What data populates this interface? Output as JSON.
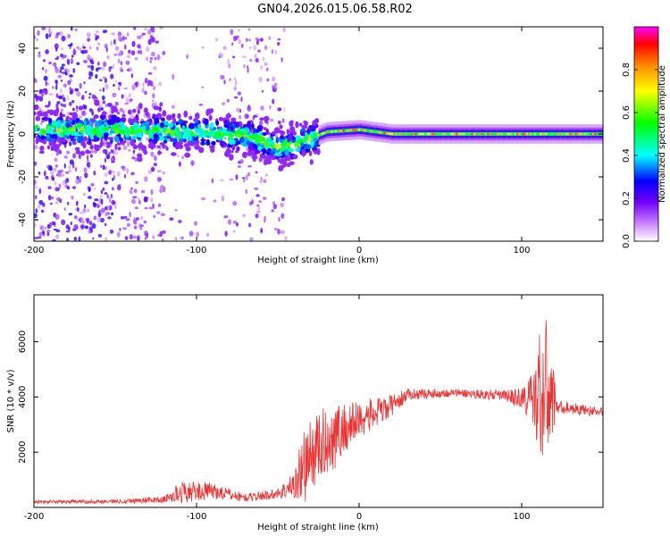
{
  "title": "GN04.2026.015.06.58.R02",
  "chart_data": [
    {
      "type": "heatmap",
      "xlabel": "Height of straight line (km)",
      "ylabel": "Frequency (Hz)",
      "xlim": [
        -200,
        150
      ],
      "ylim": [
        -50,
        50
      ],
      "xticks": [
        -200,
        -100,
        0,
        100
      ],
      "yticks": [
        -40,
        -20,
        0,
        20,
        40
      ],
      "colorbar": {
        "label": "Normalized spectral amplitude",
        "range": [
          0,
          1
        ],
        "ticks": [
          "0.0",
          "0.2",
          "0.4",
          "0.6",
          "0.8"
        ],
        "tick_values": [
          0.0,
          0.2,
          0.4,
          0.6,
          0.8
        ]
      },
      "ridge": [
        {
          "x": -200,
          "y": 2
        },
        {
          "x": -150,
          "y": 2
        },
        {
          "x": -100,
          "y": 1
        },
        {
          "x": -70,
          "y": -1
        },
        {
          "x": -50,
          "y": -6
        },
        {
          "x": -40,
          "y": -5
        },
        {
          "x": -30,
          "y": -2
        },
        {
          "x": -20,
          "y": 1
        },
        {
          "x": 0,
          "y": 2
        },
        {
          "x": 20,
          "y": 0
        },
        {
          "x": 50,
          "y": 0
        },
        {
          "x": 100,
          "y": 0
        },
        {
          "x": 115,
          "y": 0
        },
        {
          "x": 150,
          "y": 0
        }
      ]
    },
    {
      "type": "line",
      "xlabel": "Height of straight line (km)",
      "ylabel": "SNR (10 * v/v)",
      "xlim": [
        -200,
        150
      ],
      "ylim": [
        0,
        7700
      ],
      "xticks": [
        -200,
        -100,
        0,
        100
      ],
      "yticks": [
        2000,
        4000,
        6000
      ],
      "color": "#ee3333",
      "envelope": [
        {
          "x": -200,
          "mean": 200,
          "spread": 60
        },
        {
          "x": -150,
          "mean": 220,
          "spread": 80
        },
        {
          "x": -120,
          "mean": 280,
          "spread": 120
        },
        {
          "x": -110,
          "mean": 550,
          "spread": 400
        },
        {
          "x": -90,
          "mean": 600,
          "spread": 300
        },
        {
          "x": -70,
          "mean": 350,
          "spread": 150
        },
        {
          "x": -50,
          "mean": 500,
          "spread": 200
        },
        {
          "x": -40,
          "mean": 800,
          "spread": 500
        },
        {
          "x": -35,
          "mean": 1400,
          "spread": 1400
        },
        {
          "x": -25,
          "mean": 2200,
          "spread": 1300
        },
        {
          "x": -15,
          "mean": 2600,
          "spread": 1200
        },
        {
          "x": 0,
          "mean": 3200,
          "spread": 700
        },
        {
          "x": 15,
          "mean": 3500,
          "spread": 500
        },
        {
          "x": 30,
          "mean": 4100,
          "spread": 200
        },
        {
          "x": 60,
          "mean": 4150,
          "spread": 150
        },
        {
          "x": 90,
          "mean": 4050,
          "spread": 200
        },
        {
          "x": 100,
          "mean": 3950,
          "spread": 400
        },
        {
          "x": 108,
          "mean": 3900,
          "spread": 1200
        },
        {
          "x": 113,
          "mean": 4300,
          "spread": 3200
        },
        {
          "x": 118,
          "mean": 4000,
          "spread": 1800
        },
        {
          "x": 122,
          "mean": 3650,
          "spread": 250
        },
        {
          "x": 150,
          "mean": 3450,
          "spread": 150
        }
      ]
    }
  ]
}
